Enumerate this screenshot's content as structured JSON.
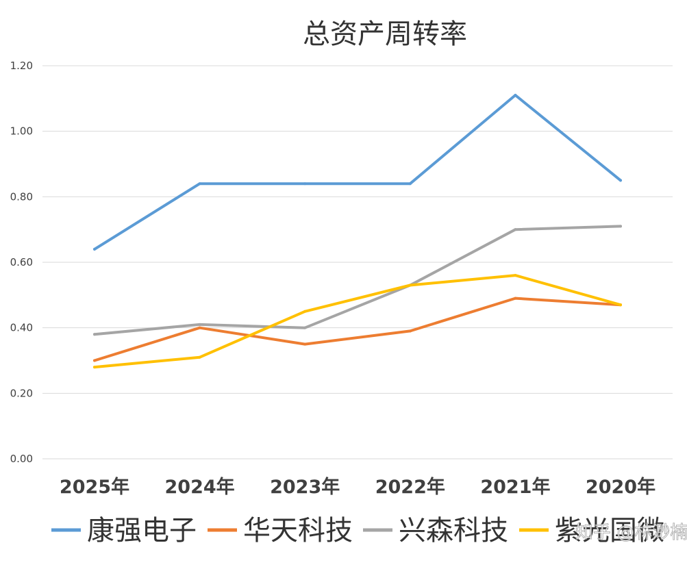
{
  "chart_data": {
    "type": "line",
    "title": "总资产周转率",
    "categories": [
      "2025年",
      "2024年",
      "2023年",
      "2022年",
      "2021年",
      "2020年"
    ],
    "ylim": [
      0,
      1.2
    ],
    "yticks": [
      "0.00",
      "0.20",
      "0.40",
      "0.60",
      "0.80",
      "1.00",
      "1.20"
    ],
    "grid": true,
    "legend_position": "bottom",
    "series": [
      {
        "name": "康强电子",
        "color": "#5B9BD5",
        "values": [
          0.64,
          0.84,
          0.84,
          0.84,
          1.11,
          0.85
        ]
      },
      {
        "name": "华天科技",
        "color": "#ED7D31",
        "values": [
          0.3,
          0.4,
          0.35,
          0.39,
          0.49,
          0.47
        ]
      },
      {
        "name": "兴森科技",
        "color": "#A5A5A5",
        "values": [
          0.38,
          0.41,
          0.4,
          0.53,
          0.7,
          0.71
        ]
      },
      {
        "name": "紫光国微",
        "color": "#FFC000",
        "values": [
          0.28,
          0.31,
          0.45,
          0.53,
          0.56,
          0.47
        ]
      }
    ]
  },
  "watermark": {
    "text": "知乎 @林渺楠"
  }
}
